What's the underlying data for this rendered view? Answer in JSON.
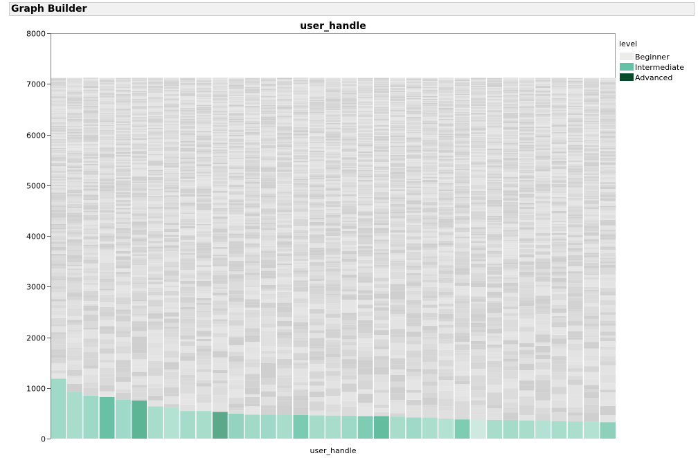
{
  "window": {
    "title": "Graph Builder"
  },
  "chart_data": {
    "type": "bar",
    "title": "user_handle",
    "xlabel": "user_handle",
    "ylabel": "",
    "ylim": [
      0,
      8000
    ],
    "yticks": [
      0,
      1000,
      2000,
      3000,
      4000,
      5000,
      6000,
      7000,
      8000
    ],
    "total_per_bar": 7120,
    "n_bars": 35,
    "legend": {
      "title": "level",
      "position": "top-right",
      "entries": [
        {
          "label": "Beginner",
          "color": "#ececec"
        },
        {
          "label": "Intermediate",
          "color": "#66c2a5"
        },
        {
          "label": "Advanced",
          "color": "#084a2a"
        }
      ]
    },
    "bottom_segment_values": [
      1185,
      925,
      850,
      820,
      770,
      755,
      635,
      620,
      545,
      545,
      530,
      495,
      475,
      470,
      470,
      465,
      460,
      455,
      450,
      445,
      445,
      435,
      420,
      415,
      395,
      380,
      375,
      370,
      370,
      360,
      355,
      345,
      340,
      330,
      325
    ],
    "bottom_segment_colors": [
      "#9fd9c7",
      "#a8dccb",
      "#9ed8c6",
      "#68c1a4",
      "#9fd9c7",
      "#5cb595",
      "#a8ddcc",
      "#b3e2d3",
      "#a4dbc9",
      "#a8ddcc",
      "#5ba88a",
      "#93d3bf",
      "#a2dac8",
      "#9ed8c6",
      "#a8ddcc",
      "#7acbb1",
      "#a4dbc9",
      "#a8ddcc",
      "#9ed8c6",
      "#7ecdb3",
      "#64bd9f",
      "#a8ddcc",
      "#9fd9c7",
      "#abdecd",
      "#b3e2d3",
      "#7ecdb3",
      "#cde9e0",
      "#a8ddcc",
      "#a4dbc9",
      "#a8ddcc",
      "#b3e2d3",
      "#a8ddcc",
      "#abdecd",
      "#b3e2d3",
      "#8ed1bb"
    ]
  }
}
